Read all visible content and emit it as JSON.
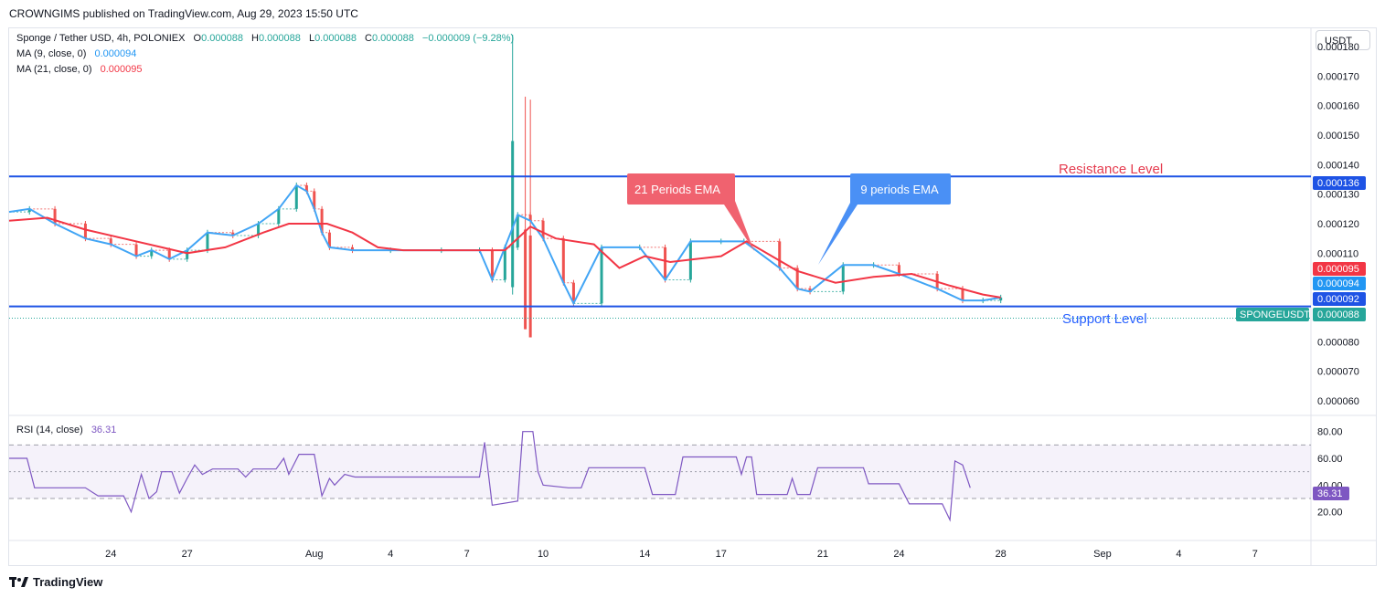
{
  "header": {
    "publisher": "CROWNGIMS published on TradingView.com, Aug 29, 2023 15:50 UTC"
  },
  "symbol": {
    "title": "Sponge / Tether USD, 4h, POLONIEX",
    "o_label": "O",
    "o": "0.000088",
    "h_label": "H",
    "h": "0.000088",
    "l_label": "L",
    "l": "0.000088",
    "c_label": "C",
    "c": "0.000088",
    "change": "−0.000009 (−9.28%)"
  },
  "indicators": {
    "ma9_label": "MA (9, close, 0)",
    "ma9_value": "0.000094",
    "ma21_label": "MA (21, close, 0)",
    "ma21_value": "0.000095",
    "rsi_label": "RSI (14, close)",
    "rsi_value": "36.31"
  },
  "currency_button": "USDT",
  "annotations": {
    "ema21": "21 Periods EMA",
    "ema9": "9 periods EMA",
    "resistance": "Resistance Level",
    "support": "Support Level"
  },
  "price_tags": {
    "resistance": "0.000136",
    "ma21": "0.000095",
    "ma9": "0.000094",
    "support": "0.000092",
    "symbol_name": "SPONGEUSDT",
    "last": "0.000088"
  },
  "footer": {
    "brand": "TradingView"
  },
  "colors": {
    "up": "#26a69a",
    "down": "#ef5350",
    "ma9": "#42a5f5",
    "ma21": "#f23645",
    "level": "#1e53e5",
    "rsi": "#7e57c2",
    "ema21_box": "#f0626f",
    "ema9_box": "#4a90f5"
  },
  "chart_data": [
    {
      "type": "line",
      "title": "Sponge / Tether USD, 4h, POLONIEX",
      "y_ticks": [
        "0.000180",
        "0.000170",
        "0.000160",
        "0.000150",
        "0.000140",
        "0.000130",
        "0.000120",
        "0.000110",
        "0.000080",
        "0.000070",
        "0.000060"
      ],
      "ylim": [
        5.6e-05,
        0.000184
      ],
      "x_ticks": [
        "24",
        "27",
        "Aug",
        "4",
        "7",
        "10",
        "14",
        "17",
        "21",
        "24",
        "28",
        "Sep",
        "4",
        "7"
      ],
      "x_tick_days": [
        24,
        27,
        32,
        35,
        38,
        41,
        45,
        48,
        52,
        55,
        59,
        63,
        66,
        69
      ],
      "xlim": [
        20.0,
        71.2
      ],
      "levels": {
        "resistance": 0.000136,
        "support": 9.2e-05
      },
      "series": [
        {
          "name": "MA (9, close, 0)",
          "points": [
            [
              20.0,
              0.000124
            ],
            [
              20.8,
              0.000125
            ],
            [
              21.8,
              0.00012
            ],
            [
              23.0,
              0.000115
            ],
            [
              24.0,
              0.000113
            ],
            [
              25.0,
              0.000109
            ],
            [
              25.6,
              0.000111
            ],
            [
              26.3,
              0.000108
            ],
            [
              27.0,
              0.000111
            ],
            [
              27.8,
              0.000117
            ],
            [
              28.8,
              0.000116
            ],
            [
              29.8,
              0.00012
            ],
            [
              30.6,
              0.000125
            ],
            [
              31.3,
              0.000133
            ],
            [
              31.7,
              0.000131
            ],
            [
              32.0,
              0.000125
            ],
            [
              32.3,
              0.000117
            ],
            [
              32.6,
              0.000112
            ],
            [
              33.5,
              0.000111
            ],
            [
              35.0,
              0.000111
            ],
            [
              37.0,
              0.000111
            ],
            [
              38.5,
              0.000111
            ],
            [
              39.0,
              0.000101
            ],
            [
              39.5,
              0.000112
            ],
            [
              40.0,
              0.000123
            ],
            [
              40.5,
              0.000121
            ],
            [
              41.0,
              0.000115
            ],
            [
              41.8,
              0.0001
            ],
            [
              42.2,
              9.3e-05
            ],
            [
              43.3,
              0.000112
            ],
            [
              44.8,
              0.000112
            ],
            [
              45.8,
              0.000101
            ],
            [
              46.8,
              0.000114
            ],
            [
              48.0,
              0.000114
            ],
            [
              48.9,
              0.000114
            ],
            [
              50.3,
              0.000105
            ],
            [
              51.0,
              9.8e-05
            ],
            [
              51.5,
              9.7e-05
            ],
            [
              52.8,
              0.000106
            ],
            [
              54.0,
              0.000106
            ],
            [
              55.0,
              0.000103
            ],
            [
              56.5,
              9.8e-05
            ],
            [
              57.5,
              9.4e-05
            ],
            [
              58.3,
              9.4e-05
            ],
            [
              59.0,
              9.5e-05
            ]
          ]
        },
        {
          "name": "MA (21, close, 0)",
          "points": [
            [
              20.0,
              0.000121
            ],
            [
              21.5,
              0.000122
            ],
            [
              23.0,
              0.000118
            ],
            [
              24.5,
              0.000115
            ],
            [
              26.0,
              0.000112
            ],
            [
              27.0,
              0.00011
            ],
            [
              28.5,
              0.000112
            ],
            [
              30.0,
              0.000117
            ],
            [
              31.0,
              0.00012
            ],
            [
              32.5,
              0.00012
            ],
            [
              33.5,
              0.000117
            ],
            [
              34.5,
              0.000112
            ],
            [
              35.5,
              0.000111
            ],
            [
              37.0,
              0.000111
            ],
            [
              38.5,
              0.000111
            ],
            [
              39.5,
              0.000111
            ],
            [
              40.5,
              0.000119
            ],
            [
              41.5,
              0.000115
            ],
            [
              43.0,
              0.000113
            ],
            [
              44.0,
              0.000105
            ],
            [
              45.0,
              0.000109
            ],
            [
              46.0,
              0.000107
            ],
            [
              47.0,
              0.000108
            ],
            [
              48.0,
              0.000109
            ],
            [
              49.0,
              0.000114
            ],
            [
              50.0,
              0.000109
            ],
            [
              51.0,
              0.000104
            ],
            [
              52.5,
              0.0001
            ],
            [
              54.0,
              0.000102
            ],
            [
              55.5,
              0.000103
            ],
            [
              57.0,
              9.9e-05
            ],
            [
              58.3,
              9.6e-05
            ],
            [
              59.0,
              9.5e-05
            ]
          ]
        }
      ]
    },
    {
      "type": "line",
      "title": "RSI (14, close)",
      "y_ticks": [
        "80.00",
        "60.00",
        "40.00",
        "20.00"
      ],
      "ylim": [
        0,
        90
      ],
      "band": [
        30,
        70
      ],
      "series": [
        {
          "name": "RSI (14, close)",
          "points": [
            [
              20.0,
              60
            ],
            [
              20.7,
              60
            ],
            [
              21.0,
              38
            ],
            [
              22.0,
              38
            ],
            [
              23.0,
              38
            ],
            [
              23.5,
              32
            ],
            [
              24.5,
              32
            ],
            [
              24.8,
              20
            ],
            [
              25.2,
              48
            ],
            [
              25.5,
              30
            ],
            [
              25.8,
              35
            ],
            [
              26.0,
              50
            ],
            [
              26.4,
              50
            ],
            [
              26.7,
              34
            ],
            [
              27.0,
              45
            ],
            [
              27.3,
              55
            ],
            [
              27.6,
              48
            ],
            [
              28.0,
              52
            ],
            [
              29.0,
              52
            ],
            [
              29.3,
              46
            ],
            [
              29.6,
              52
            ],
            [
              30.5,
              52
            ],
            [
              30.8,
              60
            ],
            [
              31.0,
              48
            ],
            [
              31.4,
              63
            ],
            [
              32.0,
              63
            ],
            [
              32.3,
              32
            ],
            [
              32.6,
              45
            ],
            [
              32.8,
              40
            ],
            [
              33.2,
              48
            ],
            [
              33.6,
              46
            ],
            [
              36.0,
              46
            ],
            [
              38.5,
              46
            ],
            [
              38.7,
              72
            ],
            [
              39.0,
              25
            ],
            [
              40.0,
              28
            ],
            [
              40.2,
              80
            ],
            [
              40.6,
              80
            ],
            [
              40.8,
              50
            ],
            [
              41.0,
              40
            ],
            [
              42.0,
              38
            ],
            [
              42.5,
              38
            ],
            [
              42.8,
              53
            ],
            [
              45.0,
              53
            ],
            [
              45.3,
              33
            ],
            [
              46.2,
              33
            ],
            [
              46.5,
              61
            ],
            [
              48.6,
              61
            ],
            [
              48.8,
              48
            ],
            [
              49.0,
              61
            ],
            [
              49.2,
              61
            ],
            [
              49.4,
              33
            ],
            [
              50.6,
              33
            ],
            [
              50.8,
              45
            ],
            [
              51.0,
              33
            ],
            [
              51.5,
              33
            ],
            [
              51.8,
              53
            ],
            [
              53.6,
              53
            ],
            [
              53.8,
              41
            ],
            [
              55.0,
              41
            ],
            [
              55.4,
              26
            ],
            [
              56.7,
              26
            ],
            [
              57.0,
              14
            ],
            [
              57.2,
              58
            ],
            [
              57.5,
              55
            ],
            [
              57.8,
              38
            ]
          ]
        }
      ]
    }
  ]
}
